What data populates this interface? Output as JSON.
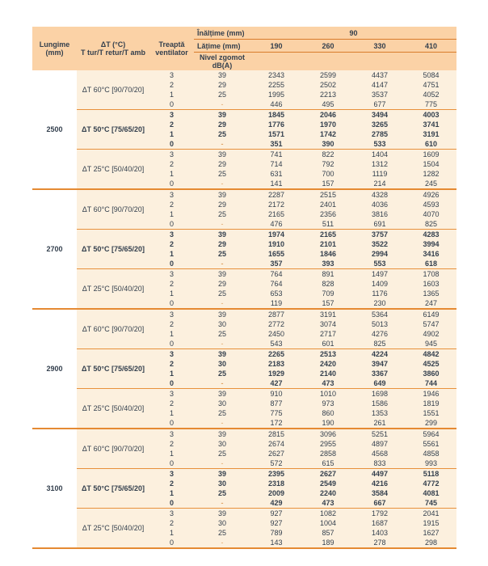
{
  "colors": {
    "header_bg": "#FBD2A6",
    "body_bg": "#FCF0DE",
    "rule_orange_thin": "#E8913C",
    "rule_orange_thick": "#E58A33",
    "header_rule": "#D97C2B",
    "text": "#333F4D"
  },
  "table": {
    "header": {
      "height_label": "Înălțime (mm)",
      "height_value": "90",
      "width_label": "Lățime (mm)",
      "width_values": [
        "190",
        "260",
        "330",
        "410"
      ],
      "col_length": [
        "Lungime",
        "(mm)"
      ],
      "col_delta_t": [
        "ΔT (°C)",
        "T tur/T retur/T amb"
      ],
      "col_fan_step": [
        "Treaptă",
        "ventilator"
      ],
      "col_noise": [
        "Nivel zgomot",
        "dB(A)"
      ]
    },
    "blocks": [
      {
        "lungime": "2500",
        "groups": [
          {
            "delta_t": "ΔT 60°C [90/70/20]",
            "bold": false,
            "rows": [
              [
                "3",
                "39",
                "2343",
                "2599",
                "4437",
                "5084"
              ],
              [
                "2",
                "29",
                "2255",
                "2502",
                "4147",
                "4751"
              ],
              [
                "1",
                "25",
                "1995",
                "2213",
                "3537",
                "4052"
              ],
              [
                "0",
                "-",
                "446",
                "495",
                "677",
                "775"
              ]
            ]
          },
          {
            "delta_t": "ΔT 50°C [75/65/20]",
            "bold": true,
            "rows": [
              [
                "3",
                "39",
                "1845",
                "2046",
                "3494",
                "4003"
              ],
              [
                "2",
                "29",
                "1776",
                "1970",
                "3265",
                "3741"
              ],
              [
                "1",
                "25",
                "1571",
                "1742",
                "2785",
                "3191"
              ],
              [
                "0",
                "-",
                "351",
                "390",
                "533",
                "610"
              ]
            ]
          },
          {
            "delta_t": "ΔT 25°C [50/40/20]",
            "bold": false,
            "rows": [
              [
                "3",
                "39",
                "741",
                "822",
                "1404",
                "1609"
              ],
              [
                "2",
                "29",
                "714",
                "792",
                "1312",
                "1504"
              ],
              [
                "1",
                "25",
                "631",
                "700",
                "1119",
                "1282"
              ],
              [
                "0",
                "-",
                "141",
                "157",
                "214",
                "245"
              ]
            ]
          }
        ]
      },
      {
        "lungime": "2700",
        "groups": [
          {
            "delta_t": "ΔT 60°C [90/70/20]",
            "bold": false,
            "rows": [
              [
                "3",
                "39",
                "2287",
                "2515",
                "4328",
                "4926"
              ],
              [
                "2",
                "29",
                "2172",
                "2401",
                "4036",
                "4593"
              ],
              [
                "1",
                "25",
                "2165",
                "2356",
                "3816",
                "4070"
              ],
              [
                "0",
                "-",
                "476",
                "511",
                "691",
                "825"
              ]
            ]
          },
          {
            "delta_t": "ΔT 50°C [75/65/20]",
            "bold": true,
            "rows": [
              [
                "3",
                "39",
                "1974",
                "2165",
                "3757",
                "4283"
              ],
              [
                "2",
                "29",
                "1910",
                "2101",
                "3522",
                "3994"
              ],
              [
                "1",
                "25",
                "1655",
                "1846",
                "2994",
                "3416"
              ],
              [
                "0",
                "-",
                "357",
                "393",
                "553",
                "618"
              ]
            ]
          },
          {
            "delta_t": "ΔT 25°C [50/40/20]",
            "bold": false,
            "rows": [
              [
                "3",
                "39",
                "764",
                "891",
                "1497",
                "1708"
              ],
              [
                "2",
                "29",
                "764",
                "828",
                "1409",
                "1603"
              ],
              [
                "1",
                "25",
                "653",
                "709",
                "1176",
                "1365"
              ],
              [
                "0",
                "-",
                "119",
                "157",
                "230",
                "247"
              ]
            ]
          }
        ]
      },
      {
        "lungime": "2900",
        "groups": [
          {
            "delta_t": "ΔT 60°C [90/70/20]",
            "bold": false,
            "rows": [
              [
                "3",
                "39",
                "2877",
                "3191",
                "5364",
                "6149"
              ],
              [
                "2",
                "30",
                "2772",
                "3074",
                "5013",
                "5747"
              ],
              [
                "1",
                "25",
                "2450",
                "2717",
                "4276",
                "4902"
              ],
              [
                "0",
                "-",
                "543",
                "601",
                "825",
                "945"
              ]
            ]
          },
          {
            "delta_t": "ΔT 50°C [75/65/20]",
            "bold": true,
            "rows": [
              [
                "3",
                "39",
                "2265",
                "2513",
                "4224",
                "4842"
              ],
              [
                "2",
                "30",
                "2183",
                "2420",
                "3947",
                "4525"
              ],
              [
                "1",
                "25",
                "1929",
                "2140",
                "3367",
                "3860"
              ],
              [
                "0",
                "-",
                "427",
                "473",
                "649",
                "744"
              ]
            ]
          },
          {
            "delta_t": "ΔT 25°C [50/40/20]",
            "bold": false,
            "rows": [
              [
                "3",
                "39",
                "910",
                "1010",
                "1698",
                "1946"
              ],
              [
                "2",
                "30",
                "877",
                "973",
                "1586",
                "1819"
              ],
              [
                "1",
                "25",
                "775",
                "860",
                "1353",
                "1551"
              ],
              [
                "0",
                "-",
                "172",
                "190",
                "261",
                "299"
              ]
            ]
          }
        ]
      },
      {
        "lungime": "3100",
        "groups": [
          {
            "delta_t": "ΔT 60°C [90/70/20]",
            "bold": false,
            "rows": [
              [
                "3",
                "39",
                "2815",
                "3096",
                "5251",
                "5964"
              ],
              [
                "2",
                "30",
                "2674",
                "2955",
                "4897",
                "5561"
              ],
              [
                "1",
                "25",
                "2627",
                "2858",
                "4568",
                "4858"
              ],
              [
                "0",
                "-",
                "572",
                "615",
                "833",
                "993"
              ]
            ]
          },
          {
            "delta_t": "ΔT 50°C [75/65/20]",
            "bold": true,
            "rows": [
              [
                "3",
                "39",
                "2395",
                "2627",
                "4497",
                "5118"
              ],
              [
                "2",
                "30",
                "2318",
                "2549",
                "4216",
                "4772"
              ],
              [
                "1",
                "25",
                "2009",
                "2240",
                "3584",
                "4081"
              ],
              [
                "0",
                "-",
                "429",
                "473",
                "667",
                "745"
              ]
            ]
          },
          {
            "delta_t": "ΔT 25°C [50/40/20]",
            "bold": false,
            "rows": [
              [
                "3",
                "39",
                "927",
                "1082",
                "1792",
                "2041"
              ],
              [
                "2",
                "30",
                "927",
                "1004",
                "1687",
                "1915"
              ],
              [
                "1",
                "25",
                "789",
                "857",
                "1403",
                "1627"
              ],
              [
                "0",
                "-",
                "143",
                "189",
                "278",
                "298"
              ]
            ]
          }
        ]
      }
    ]
  }
}
